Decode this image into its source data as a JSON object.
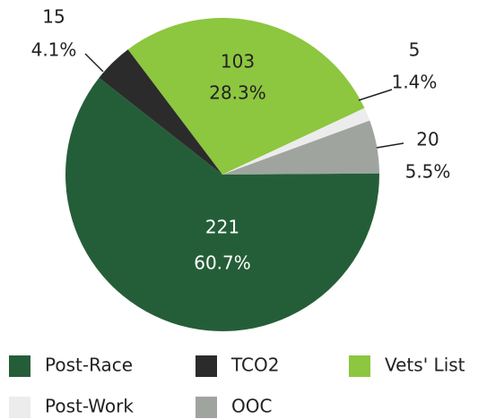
{
  "chart_data": {
    "type": "pie",
    "categories": [
      "Vets' List",
      "Post-Work",
      "OOC",
      "Post-Race",
      "TCO2"
    ],
    "values": [
      103,
      5,
      20,
      221,
      15
    ],
    "percent_labels": [
      "28.3%",
      "1.4%",
      "5.5%",
      "60.7%",
      "4.1%"
    ],
    "colors": [
      "#8dc63f",
      "#ececec",
      "#9fa49f",
      "#245e38",
      "#2b2b2b"
    ],
    "legend_order": [
      3,
      4,
      0,
      1,
      2
    ]
  }
}
